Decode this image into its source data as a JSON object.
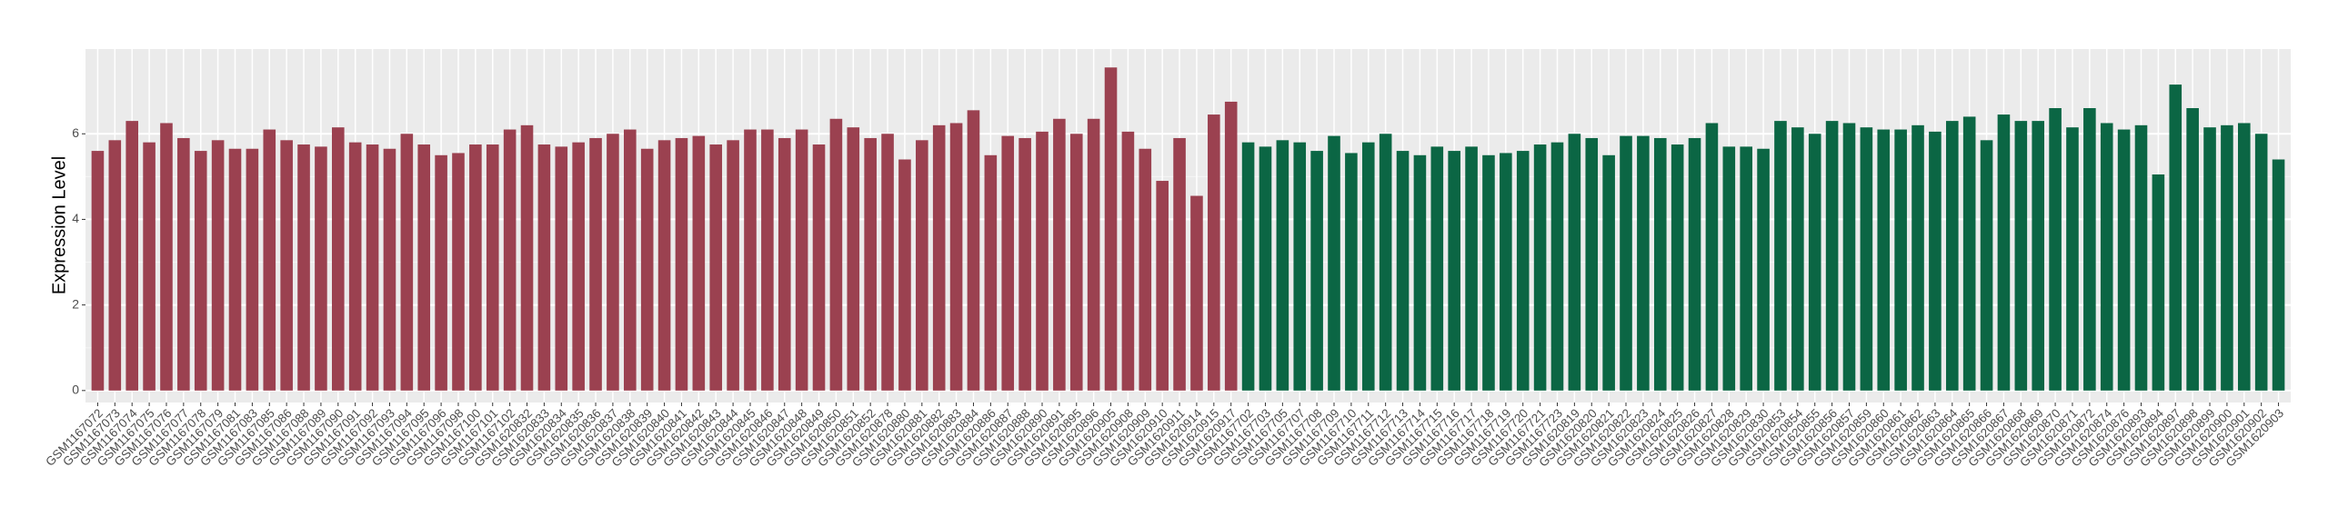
{
  "chart_data": {
    "type": "bar",
    "y_label": "Expression Level",
    "ylim": [
      -0.28,
      7.98
    ],
    "yticks": [
      0,
      2,
      4,
      6
    ],
    "grid": true,
    "series": [
      {
        "color": "#9b4150",
        "categories": [
          "GSM1167072",
          "GSM1167073",
          "GSM1167074",
          "GSM1167075",
          "GSM1167076",
          "GSM1167077",
          "GSM1167078",
          "GSM1167079",
          "GSM1167081",
          "GSM1167083",
          "GSM1167085",
          "GSM1167086",
          "GSM1167088",
          "GSM1167089",
          "GSM1167090",
          "GSM1167091",
          "GSM1167092",
          "GSM1167093",
          "GSM1167094",
          "GSM1167095",
          "GSM1167096",
          "GSM1167098",
          "GSM1167100",
          "GSM1167101",
          "GSM1167102",
          "GSM1620832",
          "GSM1620833",
          "GSM1620834",
          "GSM1620835",
          "GSM1620836",
          "GSM1620837",
          "GSM1620838",
          "GSM1620839",
          "GSM1620840",
          "GSM1620841",
          "GSM1620842",
          "GSM1620843",
          "GSM1620844",
          "GSM1620845",
          "GSM1620846",
          "GSM1620847",
          "GSM1620848",
          "GSM1620849",
          "GSM1620850",
          "GSM1620851",
          "GSM1620852",
          "GSM1620878",
          "GSM1620880",
          "GSM1620881",
          "GSM1620882",
          "GSM1620883",
          "GSM1620884",
          "GSM1620886",
          "GSM1620887",
          "GSM1620888",
          "GSM1620890",
          "GSM1620891",
          "GSM1620895",
          "GSM1620896",
          "GSM1620905",
          "GSM1620908",
          "GSM1620909",
          "GSM1620910",
          "GSM1620911",
          "GSM1620914",
          "GSM1620915",
          "GSM1620917"
        ],
        "values": [
          5.6,
          5.85,
          6.3,
          5.8,
          6.25,
          5.9,
          5.6,
          5.85,
          5.65,
          5.65,
          6.1,
          5.85,
          5.75,
          5.7,
          6.15,
          5.8,
          5.75,
          5.65,
          6.0,
          5.75,
          5.5,
          5.55,
          5.75,
          5.75,
          6.1,
          6.2,
          5.75,
          5.7,
          5.8,
          5.9,
          6.0,
          6.1,
          5.65,
          5.85,
          5.9,
          5.95,
          5.75,
          5.85,
          6.1,
          6.1,
          5.9,
          6.1,
          5.75,
          6.35,
          6.15,
          5.9,
          6.0,
          5.4,
          5.85,
          6.2,
          6.25,
          6.55,
          5.5,
          5.95,
          5.9,
          6.05,
          6.35,
          6.0,
          6.35,
          7.55,
          6.05,
          5.65,
          4.9,
          5.9,
          4.55,
          6.45,
          6.75
        ]
      },
      {
        "color": "#0b6644",
        "categories": [
          "GSM1167702",
          "GSM1167703",
          "GSM1167705",
          "GSM1167707",
          "GSM1167708",
          "GSM1167709",
          "GSM1167710",
          "GSM1167711",
          "GSM1167712",
          "GSM1167713",
          "GSM1167714",
          "GSM1167715",
          "GSM1167716",
          "GSM1167717",
          "GSM1167718",
          "GSM1167719",
          "GSM1167720",
          "GSM1167721",
          "GSM1167723",
          "GSM1620819",
          "GSM1620820",
          "GSM1620821",
          "GSM1620822",
          "GSM1620823",
          "GSM1620824",
          "GSM1620825",
          "GSM1620826",
          "GSM1620827",
          "GSM1620828",
          "GSM1620829",
          "GSM1620830",
          "GSM1620853",
          "GSM1620854",
          "GSM1620855",
          "GSM1620856",
          "GSM1620857",
          "GSM1620859",
          "GSM1620860",
          "GSM1620861",
          "GSM1620862",
          "GSM1620863",
          "GSM1620864",
          "GSM1620865",
          "GSM1620866",
          "GSM1620867",
          "GSM1620868",
          "GSM1620869",
          "GSM1620870",
          "GSM1620871",
          "GSM1620872",
          "GSM1620874",
          "GSM1620876",
          "GSM1620893",
          "GSM1620894",
          "GSM1620897",
          "GSM1620898",
          "GSM1620899",
          "GSM1620900",
          "GSM1620901",
          "GSM1620902",
          "GSM1620903"
        ],
        "values": [
          5.8,
          5.7,
          5.85,
          5.8,
          5.6,
          5.95,
          5.55,
          5.8,
          6.0,
          5.6,
          5.5,
          5.7,
          5.6,
          5.7,
          5.5,
          5.55,
          5.6,
          5.75,
          5.8,
          6.0,
          5.9,
          5.5,
          5.95,
          5.95,
          5.9,
          5.75,
          5.9,
          6.25,
          5.7,
          5.7,
          5.65,
          6.3,
          6.15,
          6.0,
          6.3,
          6.25,
          6.15,
          6.1,
          6.1,
          6.2,
          6.05,
          6.3,
          6.4,
          5.85,
          6.45,
          6.3,
          6.3,
          6.6,
          6.15,
          6.6,
          6.25,
          6.1,
          6.2,
          5.05,
          7.15,
          6.6,
          6.15,
          6.2,
          6.25,
          6.0,
          5.4
        ]
      }
    ]
  }
}
